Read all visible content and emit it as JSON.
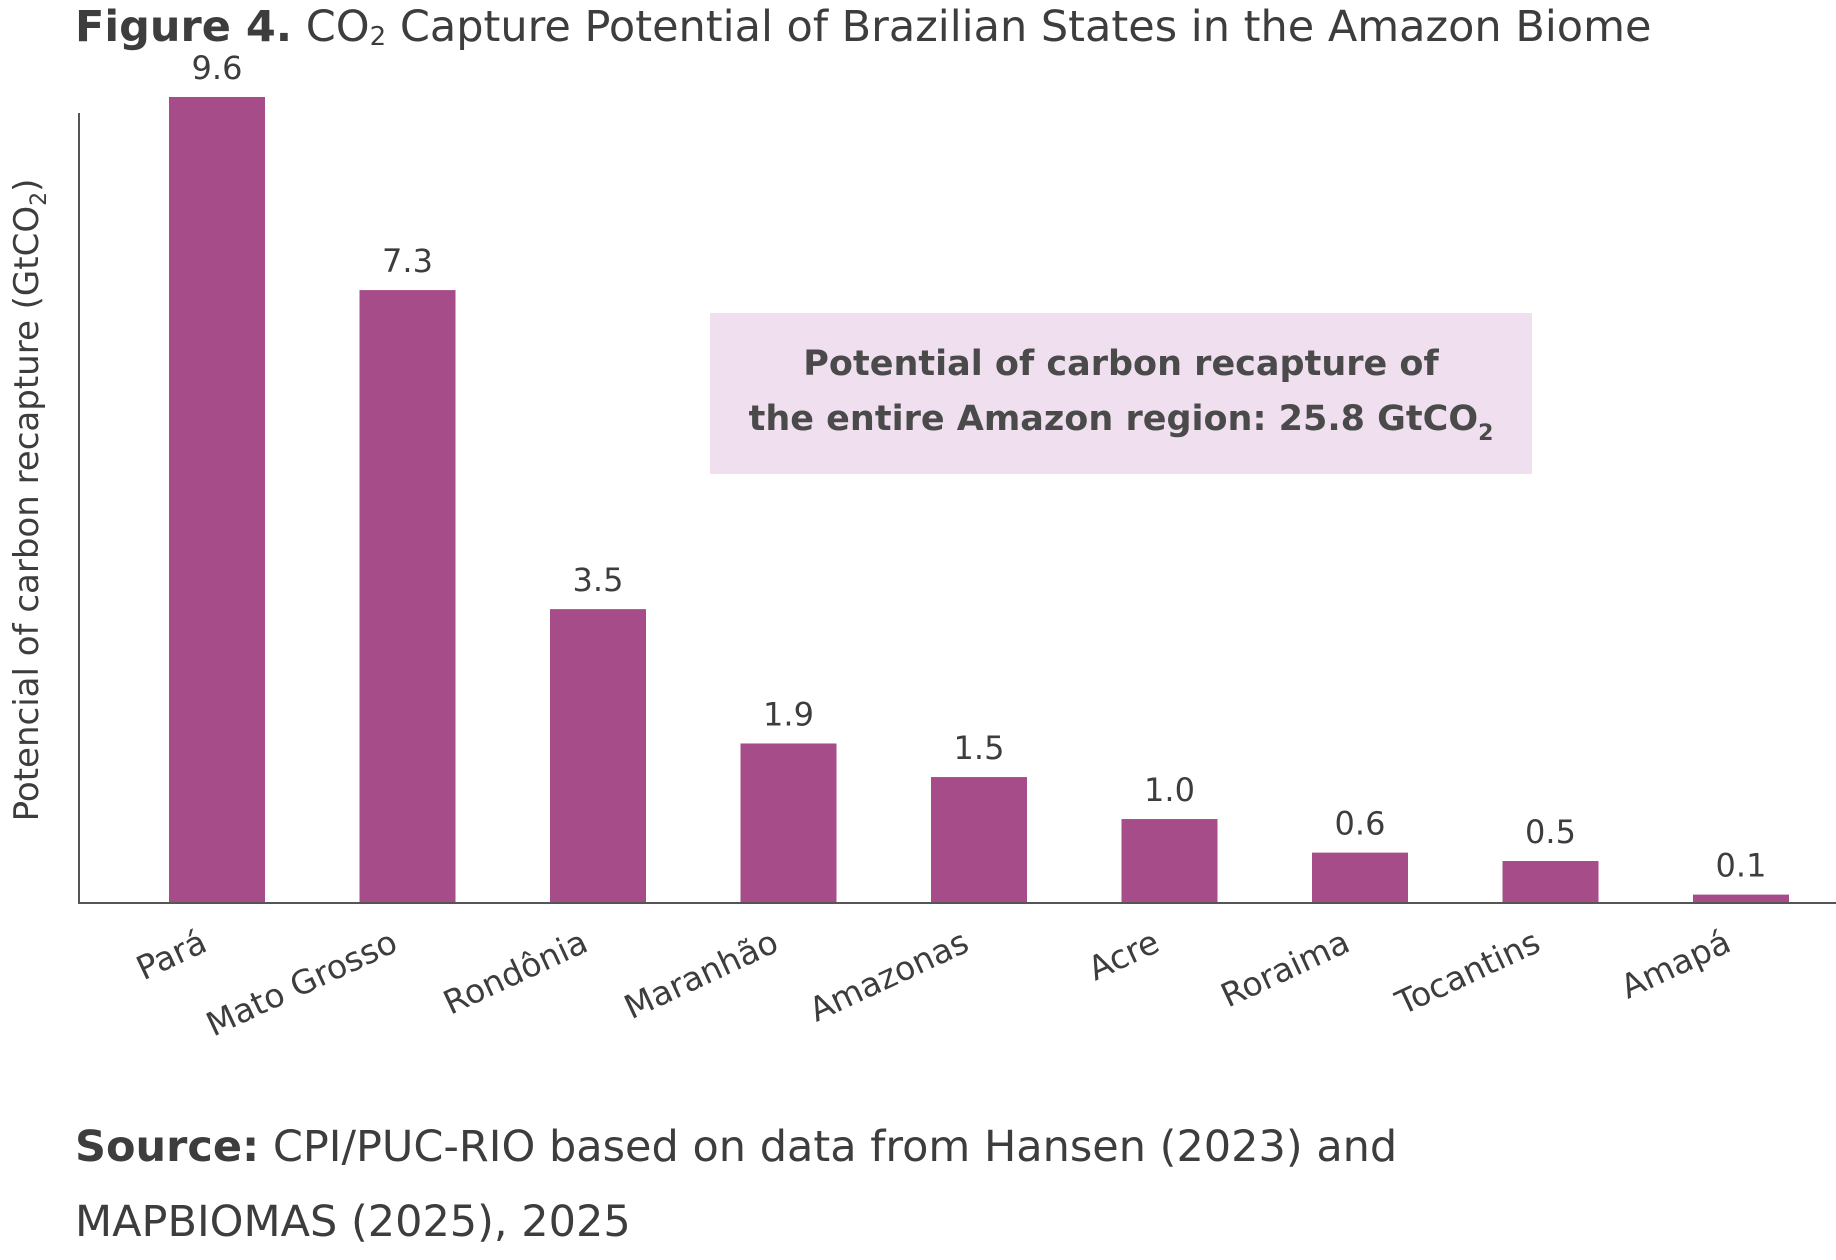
{
  "figure": {
    "label": "Figure 4.",
    "title_pre": "CO",
    "title_sub": "2",
    "title_post": " Capture Potential of Brazilian States in the Amazon Biome"
  },
  "chart_data": {
    "type": "bar",
    "categories": [
      "Pará",
      "Mato Grosso",
      "Rondônia",
      "Maranhão",
      "Amazonas",
      "Acre",
      "Roraima",
      "Tocantins",
      "Amapá"
    ],
    "values": [
      9.6,
      7.3,
      3.5,
      1.9,
      1.5,
      1.0,
      0.6,
      0.5,
      0.1
    ],
    "value_labels": [
      "9.6",
      "7.3",
      "3.5",
      "1.9",
      "1.5",
      "1.0",
      "0.6",
      "0.5",
      "0.1"
    ],
    "ylabel": "Potencial of carbon recapture (GtCO",
    "ylabel_sub": "2",
    "ylabel_post": ")",
    "ylim": [
      0,
      10.1
    ],
    "grid": false,
    "bar_color": "#a64d89",
    "annotation": {
      "line1": "Potential of carbon recapture of",
      "line2": "the entire Amazon region: 25.8 GtCO",
      "line2_sub": "2",
      "background": "#f0e0ef"
    }
  },
  "source": {
    "label": "Source:",
    "text": " CPI/PUC-RIO based on data from Hansen (2023) and MAPBIOMAS (2025), 2025"
  }
}
